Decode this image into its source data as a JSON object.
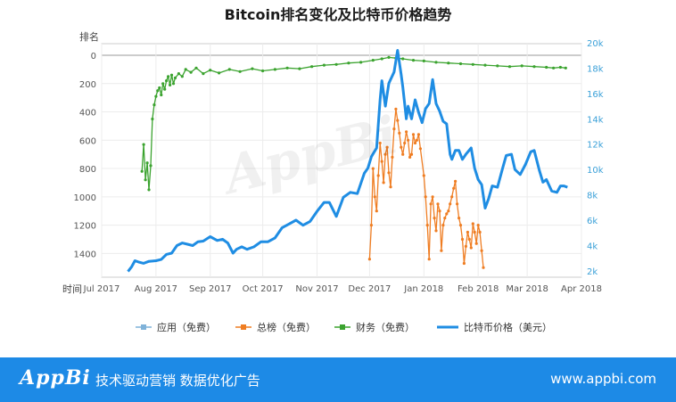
{
  "chart_data": {
    "type": "line",
    "title": "Bitcoin排名变化及比特币价格趋势",
    "left_axis_label": "排名",
    "x_axis_label": "时间",
    "x_tick_labels": [
      "Jul 2017",
      "Aug 2017",
      "Sep 2017",
      "Oct 2017",
      "Nov 2017",
      "Dec 2017",
      "Jan 2018",
      "Feb 2018",
      "Mar 2018",
      "Apr 2018"
    ],
    "left_ticks": [
      0,
      200,
      400,
      600,
      800,
      1000,
      1200,
      1400
    ],
    "left_tick_labels": [
      "0",
      "200",
      "400",
      "600",
      "800",
      "1000",
      "1200",
      "1400"
    ],
    "right_ticks": [
      2000,
      4000,
      6000,
      8000,
      10000,
      12000,
      14000,
      16000,
      18000,
      20000
    ],
    "right_tick_labels": [
      "2k",
      "4k",
      "6k",
      "8k",
      "10k",
      "12k",
      "14k",
      "16k",
      "18k",
      "20k"
    ],
    "x_range": [
      "2017-07-01",
      "2018-04-01"
    ],
    "left_range_inverted": [
      0,
      1530
    ],
    "right_range": [
      1500,
      20000
    ],
    "colors": {
      "app": "#7fb2d9",
      "overall": "#ef7d22",
      "finance": "#3ba32f",
      "price": "#1f8de3"
    },
    "series": [
      {
        "name": "应用（免费）",
        "axis": "left",
        "points": []
      },
      {
        "name": "总榜（免费）",
        "axis": "left",
        "points": [
          [
            "2017-12-01",
            1440
          ],
          [
            "2017-12-02",
            1200
          ],
          [
            "2017-12-03",
            800
          ],
          [
            "2017-12-04",
            1000
          ],
          [
            "2017-12-05",
            1100
          ],
          [
            "2017-12-06",
            850
          ],
          [
            "2017-12-07",
            620
          ],
          [
            "2017-12-08",
            750
          ],
          [
            "2017-12-09",
            900
          ],
          [
            "2017-12-10",
            700
          ],
          [
            "2017-12-11",
            650
          ],
          [
            "2017-12-12",
            830
          ],
          [
            "2017-12-13",
            930
          ],
          [
            "2017-12-14",
            720
          ],
          [
            "2017-12-15",
            520
          ],
          [
            "2017-12-16",
            380
          ],
          [
            "2017-12-17",
            460
          ],
          [
            "2017-12-18",
            550
          ],
          [
            "2017-12-19",
            650
          ],
          [
            "2017-12-20",
            700
          ],
          [
            "2017-12-21",
            620
          ],
          [
            "2017-12-22",
            540
          ],
          [
            "2017-12-23",
            600
          ],
          [
            "2017-12-24",
            720
          ],
          [
            "2017-12-25",
            700
          ],
          [
            "2017-12-26",
            560
          ],
          [
            "2017-12-27",
            620
          ],
          [
            "2017-12-28",
            600
          ],
          [
            "2017-12-29",
            560
          ],
          [
            "2017-12-30",
            660
          ],
          [
            "2018-01-01",
            850
          ],
          [
            "2018-01-02",
            1000
          ],
          [
            "2018-01-03",
            1200
          ],
          [
            "2018-01-04",
            1440
          ],
          [
            "2018-01-05",
            1050
          ],
          [
            "2018-01-06",
            1000
          ],
          [
            "2018-01-07",
            1150
          ],
          [
            "2018-01-08",
            1240
          ],
          [
            "2018-01-09",
            1050
          ],
          [
            "2018-01-10",
            1100
          ],
          [
            "2018-01-11",
            1380
          ],
          [
            "2018-01-12",
            1200
          ],
          [
            "2018-01-13",
            1150
          ],
          [
            "2018-01-14",
            1120
          ],
          [
            "2018-01-15",
            1100
          ],
          [
            "2018-01-16",
            1050
          ],
          [
            "2018-01-17",
            1000
          ],
          [
            "2018-01-18",
            940
          ],
          [
            "2018-01-19",
            890
          ],
          [
            "2018-01-20",
            1050
          ],
          [
            "2018-01-21",
            1150
          ],
          [
            "2018-01-22",
            1200
          ],
          [
            "2018-01-23",
            1300
          ],
          [
            "2018-01-24",
            1470
          ],
          [
            "2018-01-25",
            1350
          ],
          [
            "2018-01-26",
            1250
          ],
          [
            "2018-01-27",
            1300
          ],
          [
            "2018-01-28",
            1360
          ],
          [
            "2018-01-29",
            1190
          ],
          [
            "2018-01-30",
            1250
          ],
          [
            "2018-01-31",
            1330
          ],
          [
            "2018-02-01",
            1200
          ],
          [
            "2018-02-02",
            1250
          ],
          [
            "2018-02-03",
            1380
          ],
          [
            "2018-02-04",
            1500
          ]
        ]
      },
      {
        "name": "财务（免费）",
        "axis": "left",
        "points": [
          [
            "2017-07-24",
            820
          ],
          [
            "2017-07-25",
            630
          ],
          [
            "2017-07-26",
            880
          ],
          [
            "2017-07-27",
            760
          ],
          [
            "2017-07-28",
            950
          ],
          [
            "2017-07-29",
            780
          ],
          [
            "2017-07-30",
            450
          ],
          [
            "2017-07-31",
            350
          ],
          [
            "2017-08-01",
            290
          ],
          [
            "2017-08-02",
            250
          ],
          [
            "2017-08-03",
            230
          ],
          [
            "2017-08-04",
            280
          ],
          [
            "2017-08-05",
            200
          ],
          [
            "2017-08-06",
            240
          ],
          [
            "2017-08-07",
            180
          ],
          [
            "2017-08-08",
            150
          ],
          [
            "2017-08-09",
            210
          ],
          [
            "2017-08-10",
            140
          ],
          [
            "2017-08-11",
            200
          ],
          [
            "2017-08-12",
            160
          ],
          [
            "2017-08-14",
            130
          ],
          [
            "2017-08-16",
            150
          ],
          [
            "2017-08-18",
            100
          ],
          [
            "2017-08-21",
            120
          ],
          [
            "2017-08-24",
            90
          ],
          [
            "2017-08-28",
            130
          ],
          [
            "2017-09-01",
            105
          ],
          [
            "2017-09-06",
            125
          ],
          [
            "2017-09-12",
            100
          ],
          [
            "2017-09-18",
            115
          ],
          [
            "2017-09-25",
            95
          ],
          [
            "2017-10-01",
            110
          ],
          [
            "2017-10-08",
            100
          ],
          [
            "2017-10-15",
            90
          ],
          [
            "2017-10-22",
            95
          ],
          [
            "2017-10-29",
            80
          ],
          [
            "2017-11-05",
            70
          ],
          [
            "2017-11-12",
            65
          ],
          [
            "2017-11-19",
            55
          ],
          [
            "2017-11-26",
            50
          ],
          [
            "2017-12-03",
            35
          ],
          [
            "2017-12-08",
            25
          ],
          [
            "2017-12-12",
            15
          ],
          [
            "2017-12-16",
            20
          ],
          [
            "2017-12-20",
            25
          ],
          [
            "2017-12-26",
            35
          ],
          [
            "2018-01-01",
            40
          ],
          [
            "2018-01-08",
            50
          ],
          [
            "2018-01-15",
            55
          ],
          [
            "2018-01-22",
            60
          ],
          [
            "2018-01-29",
            65
          ],
          [
            "2018-02-05",
            70
          ],
          [
            "2018-02-12",
            75
          ],
          [
            "2018-02-19",
            80
          ],
          [
            "2018-02-26",
            75
          ],
          [
            "2018-03-05",
            80
          ],
          [
            "2018-03-12",
            85
          ],
          [
            "2018-03-16",
            90
          ],
          [
            "2018-03-20",
            85
          ],
          [
            "2018-03-23",
            90
          ]
        ]
      },
      {
        "name": "比特币价格（美元）",
        "axis": "right",
        "points": [
          [
            "2017-07-16",
            1950
          ],
          [
            "2017-07-18",
            2300
          ],
          [
            "2017-07-20",
            2800
          ],
          [
            "2017-07-22",
            2700
          ],
          [
            "2017-07-25",
            2600
          ],
          [
            "2017-07-28",
            2750
          ],
          [
            "2017-08-01",
            2800
          ],
          [
            "2017-08-04",
            2900
          ],
          [
            "2017-08-07",
            3300
          ],
          [
            "2017-08-10",
            3400
          ],
          [
            "2017-08-13",
            4000
          ],
          [
            "2017-08-16",
            4200
          ],
          [
            "2017-08-19",
            4100
          ],
          [
            "2017-08-22",
            4000
          ],
          [
            "2017-08-25",
            4300
          ],
          [
            "2017-08-28",
            4350
          ],
          [
            "2017-09-01",
            4700
          ],
          [
            "2017-09-05",
            4400
          ],
          [
            "2017-09-08",
            4500
          ],
          [
            "2017-09-11",
            4200
          ],
          [
            "2017-09-14",
            3400
          ],
          [
            "2017-09-16",
            3700
          ],
          [
            "2017-09-19",
            3900
          ],
          [
            "2017-09-22",
            3700
          ],
          [
            "2017-09-26",
            3900
          ],
          [
            "2017-09-30",
            4300
          ],
          [
            "2017-10-04",
            4300
          ],
          [
            "2017-10-08",
            4600
          ],
          [
            "2017-10-12",
            5400
          ],
          [
            "2017-10-16",
            5700
          ],
          [
            "2017-10-20",
            6000
          ],
          [
            "2017-10-24",
            5600
          ],
          [
            "2017-10-28",
            5900
          ],
          [
            "2017-11-01",
            6700
          ],
          [
            "2017-11-05",
            7400
          ],
          [
            "2017-11-08",
            7400
          ],
          [
            "2017-11-12",
            6300
          ],
          [
            "2017-11-16",
            7800
          ],
          [
            "2017-11-20",
            8200
          ],
          [
            "2017-11-24",
            8100
          ],
          [
            "2017-11-28",
            9700
          ],
          [
            "2017-11-30",
            10100
          ],
          [
            "2017-12-02",
            11000
          ],
          [
            "2017-12-05",
            11700
          ],
          [
            "2017-12-07",
            15500
          ],
          [
            "2017-12-08",
            17000
          ],
          [
            "2017-12-10",
            15000
          ],
          [
            "2017-12-12",
            16800
          ],
          [
            "2017-12-15",
            17700
          ],
          [
            "2017-12-17",
            19400
          ],
          [
            "2017-12-19",
            17500
          ],
          [
            "2017-12-20",
            16500
          ],
          [
            "2017-12-22",
            14000
          ],
          [
            "2017-12-23",
            15000
          ],
          [
            "2017-12-25",
            14000
          ],
          [
            "2017-12-27",
            15500
          ],
          [
            "2017-12-29",
            14500
          ],
          [
            "2017-12-31",
            13700
          ],
          [
            "2018-01-02",
            14800
          ],
          [
            "2018-01-04",
            15200
          ],
          [
            "2018-01-06",
            17100
          ],
          [
            "2018-01-08",
            15200
          ],
          [
            "2018-01-10",
            14600
          ],
          [
            "2018-01-12",
            13800
          ],
          [
            "2018-01-14",
            13600
          ],
          [
            "2018-01-16",
            11200
          ],
          [
            "2018-01-17",
            10800
          ],
          [
            "2018-01-19",
            11500
          ],
          [
            "2018-01-21",
            11500
          ],
          [
            "2018-01-23",
            10800
          ],
          [
            "2018-01-25",
            11200
          ],
          [
            "2018-01-28",
            11700
          ],
          [
            "2018-01-30",
            10100
          ],
          [
            "2018-02-01",
            9200
          ],
          [
            "2018-02-03",
            8800
          ],
          [
            "2018-02-05",
            6950
          ],
          [
            "2018-02-07",
            7700
          ],
          [
            "2018-02-09",
            8700
          ],
          [
            "2018-02-12",
            8600
          ],
          [
            "2018-02-15",
            10100
          ],
          [
            "2018-02-17",
            11100
          ],
          [
            "2018-02-20",
            11200
          ],
          [
            "2018-02-22",
            10000
          ],
          [
            "2018-02-25",
            9600
          ],
          [
            "2018-02-28",
            10400
          ],
          [
            "2018-03-03",
            11400
          ],
          [
            "2018-03-05",
            11500
          ],
          [
            "2018-03-08",
            9900
          ],
          [
            "2018-03-10",
            9000
          ],
          [
            "2018-03-12",
            9200
          ],
          [
            "2018-03-15",
            8300
          ],
          [
            "2018-03-18",
            8200
          ],
          [
            "2018-03-20",
            8700
          ],
          [
            "2018-03-22",
            8700
          ],
          [
            "2018-03-24",
            8600
          ]
        ]
      }
    ],
    "legend": [
      {
        "label": "应用（免费）",
        "color": "#7fb2d9",
        "style": "marker"
      },
      {
        "label": "总榜（免费）",
        "color": "#ef7d22",
        "style": "marker"
      },
      {
        "label": "财务（免费）",
        "color": "#3ba32f",
        "style": "marker"
      },
      {
        "label": "比特币价格（美元）",
        "color": "#1f8de3",
        "style": "thick"
      }
    ],
    "legend_position": "bottom",
    "watermark": "AppBi"
  },
  "footer": {
    "logo": "AppBi",
    "slogan": "技术驱动营销 数据优化广告",
    "url": "www.appbi.com"
  }
}
